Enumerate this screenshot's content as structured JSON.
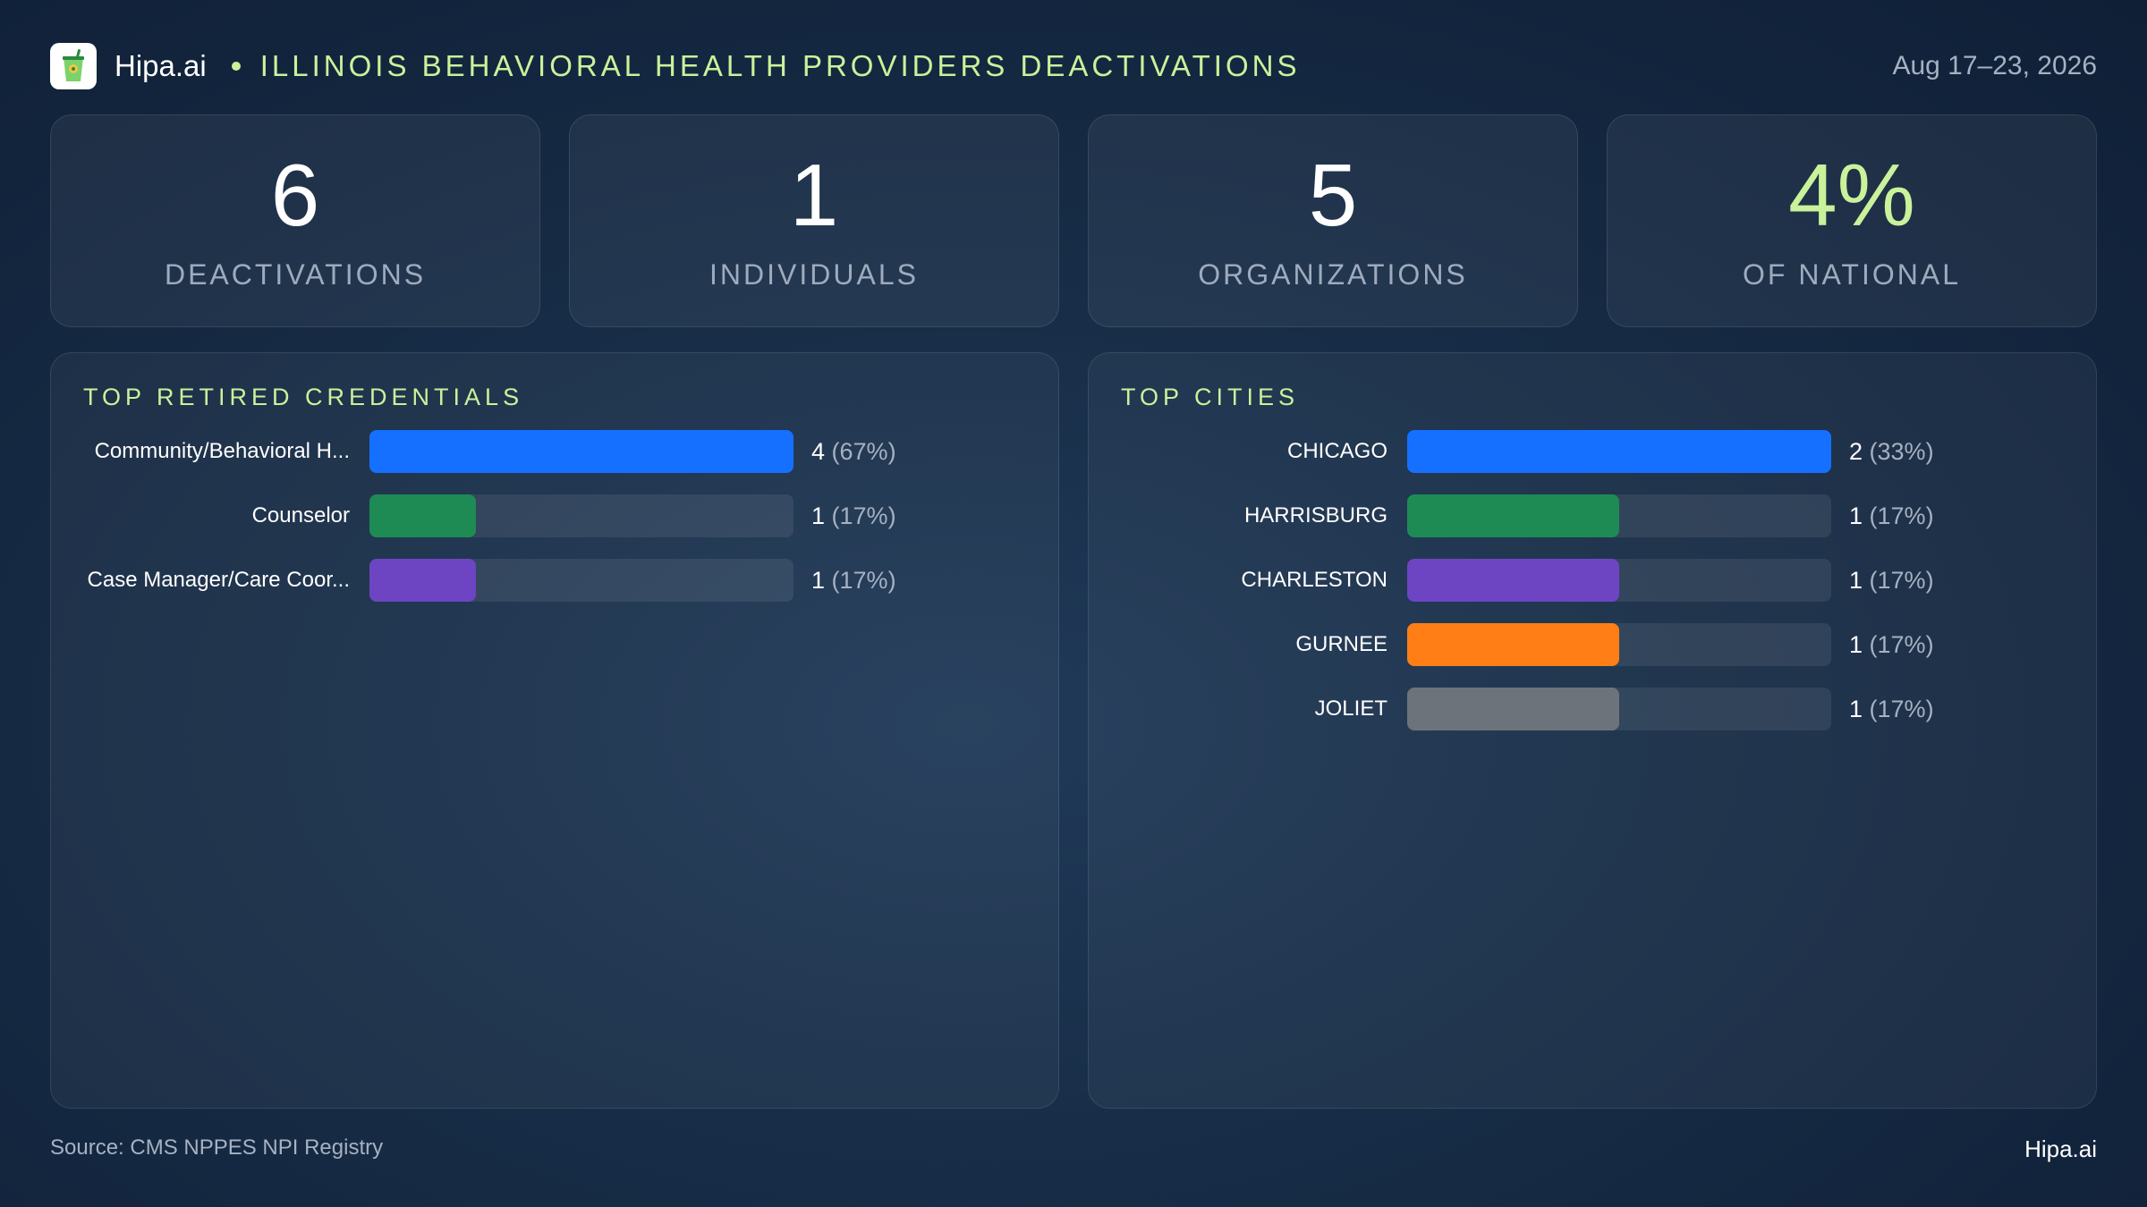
{
  "header": {
    "brand": "Hipa.ai",
    "title": "ILLINOIS BEHAVIORAL HEALTH PROVIDERS DEACTIVATIONS",
    "date": "Aug 17–23, 2026",
    "logo_icon": "cup-icon"
  },
  "kpis": [
    {
      "value": "6",
      "label": "DEACTIVATIONS"
    },
    {
      "value": "1",
      "label": "INDIVIDUALS"
    },
    {
      "value": "5",
      "label": "ORGANIZATIONS"
    },
    {
      "value": "4%",
      "label": "OF NATIONAL"
    }
  ],
  "colors": {
    "accent": "#c9f29b",
    "blue": "#1570ff",
    "green": "#1e8b55",
    "purple": "#6d45c2",
    "orange": "#ff7f16",
    "gray": "#6d737b"
  },
  "chart_data": [
    {
      "type": "bar",
      "orientation": "horizontal",
      "title": "TOP RETIRED CREDENTIALS",
      "categories": [
        "Community/Behavioral H...",
        "Counselor",
        "Case Manager/Care Coor..."
      ],
      "values": [
        4,
        1,
        1
      ],
      "value_labels": [
        "4",
        "1",
        "1"
      ],
      "percent_labels": [
        "(67%)",
        "(17%)",
        "(17%)"
      ],
      "colors": [
        "#1570ff",
        "#1e8b55",
        "#6d45c2"
      ],
      "xlim": [
        0,
        4
      ]
    },
    {
      "type": "bar",
      "orientation": "horizontal",
      "title": "TOP CITIES",
      "categories": [
        "CHICAGO",
        "HARRISBURG",
        "CHARLESTON",
        "GURNEE",
        "JOLIET"
      ],
      "values": [
        2,
        1,
        1,
        1,
        1
      ],
      "value_labels": [
        "2",
        "1",
        "1",
        "1",
        "1"
      ],
      "percent_labels": [
        "(33%)",
        "(17%)",
        "(17%)",
        "(17%)",
        "(17%)"
      ],
      "colors": [
        "#1570ff",
        "#1e8b55",
        "#6d45c2",
        "#ff7f16",
        "#6d737b"
      ],
      "xlim": [
        0,
        2
      ]
    }
  ],
  "footer": {
    "source": "Source: CMS NPPES NPI Registry",
    "brand": "Hipa.ai"
  }
}
